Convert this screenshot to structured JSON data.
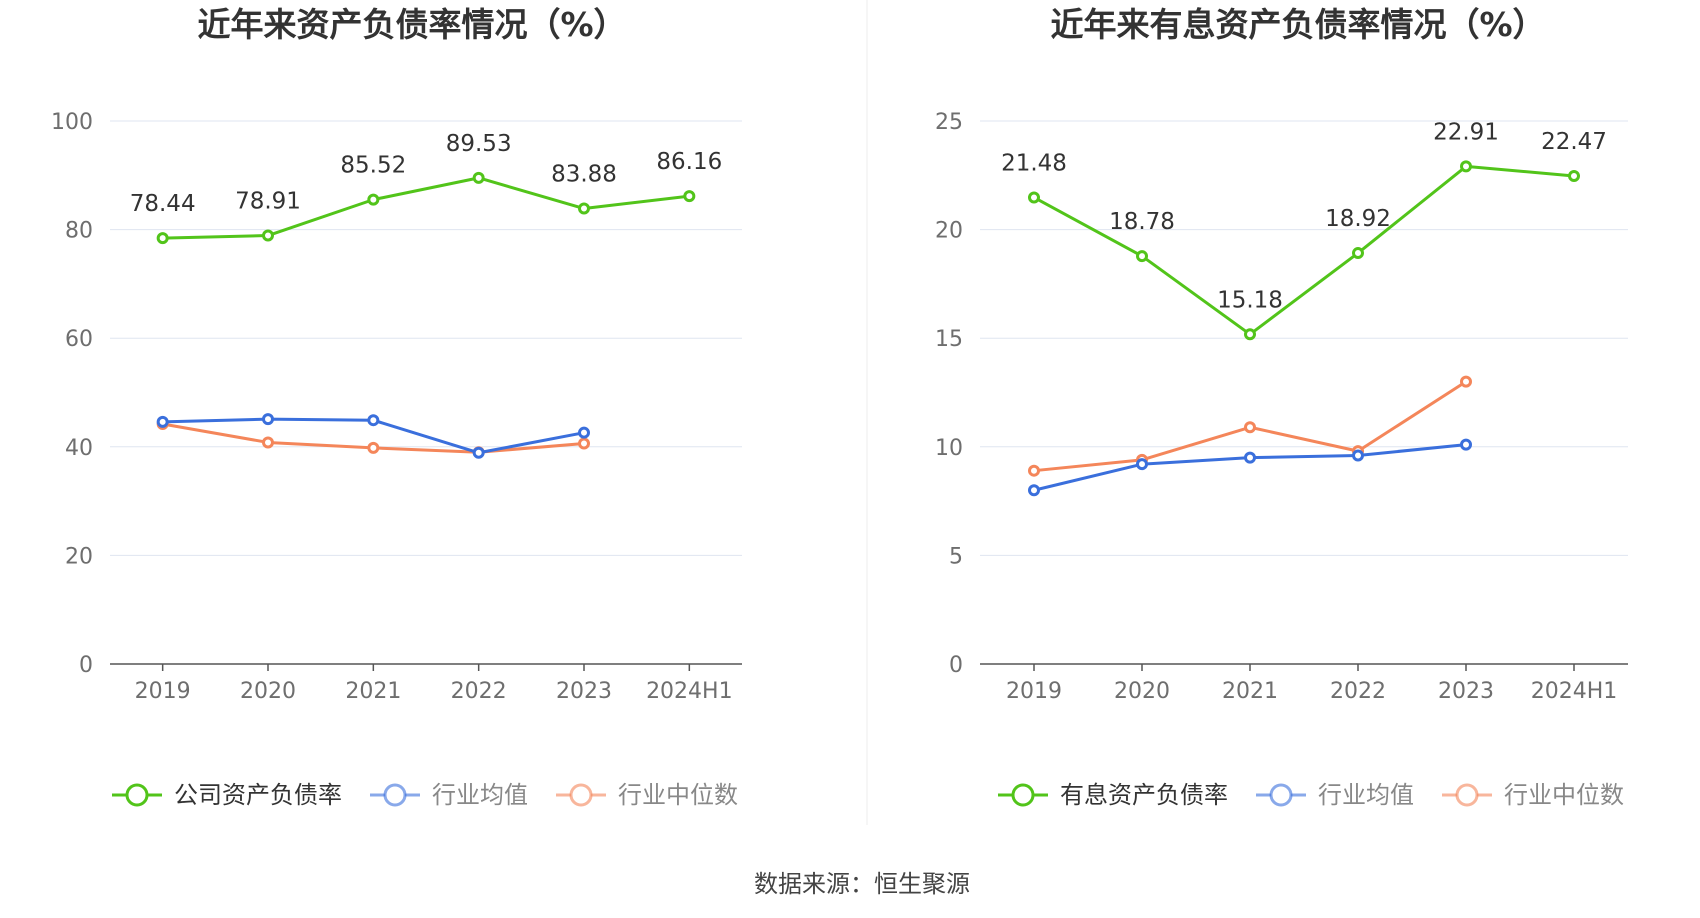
{
  "source": "数据来源：恒生聚源",
  "colors": {
    "company": "#52c41a",
    "avg": "#3a6fdc",
    "median": "#f4865a",
    "grid": "#dfe5f0",
    "axis": "#6e6e6e",
    "title": "#333333",
    "divider": "#eeeeee"
  },
  "chart_data": [
    {
      "type": "line",
      "title": "近年来资产负债率情况（%）",
      "categories": [
        "2019",
        "2020",
        "2021",
        "2022",
        "2023",
        "2024H1"
      ],
      "ylim": [
        0,
        100
      ],
      "yticks": [
        "0",
        "20",
        "40",
        "60",
        "80",
        "100"
      ],
      "grid": true,
      "legend_position": "bottom",
      "series": [
        {
          "name": "公司资产负债率",
          "key": "company",
          "values": [
            78.44,
            78.91,
            85.52,
            89.53,
            83.88,
            86.16
          ],
          "labels": [
            "78.44",
            "78.91",
            "85.52",
            "89.53",
            "83.88",
            "86.16"
          ]
        },
        {
          "name": "行业均值",
          "key": "avg",
          "values": [
            44.6,
            45.1,
            44.9,
            38.9,
            42.6,
            null
          ]
        },
        {
          "name": "行业中位数",
          "key": "median",
          "values": [
            44.2,
            40.8,
            39.8,
            39.0,
            40.6,
            null
          ]
        }
      ]
    },
    {
      "type": "line",
      "title": "近年来有息资产负债率情况（%）",
      "categories": [
        "2019",
        "2020",
        "2021",
        "2022",
        "2023",
        "2024H1"
      ],
      "ylim": [
        0,
        25
      ],
      "yticks": [
        "0",
        "5",
        "10",
        "15",
        "20",
        "25"
      ],
      "grid": true,
      "legend_position": "bottom",
      "series": [
        {
          "name": "有息资产负债率",
          "key": "company",
          "values": [
            21.48,
            18.78,
            15.18,
            18.92,
            22.91,
            22.47
          ],
          "labels": [
            "21.48",
            "18.78",
            "15.18",
            "18.92",
            "22.91",
            "22.47"
          ]
        },
        {
          "name": "行业均值",
          "key": "avg",
          "values": [
            8.0,
            9.2,
            9.5,
            9.6,
            10.1,
            null
          ]
        },
        {
          "name": "行业中位数",
          "key": "median",
          "values": [
            8.9,
            9.4,
            10.9,
            9.8,
            13.0,
            null
          ]
        }
      ]
    }
  ]
}
